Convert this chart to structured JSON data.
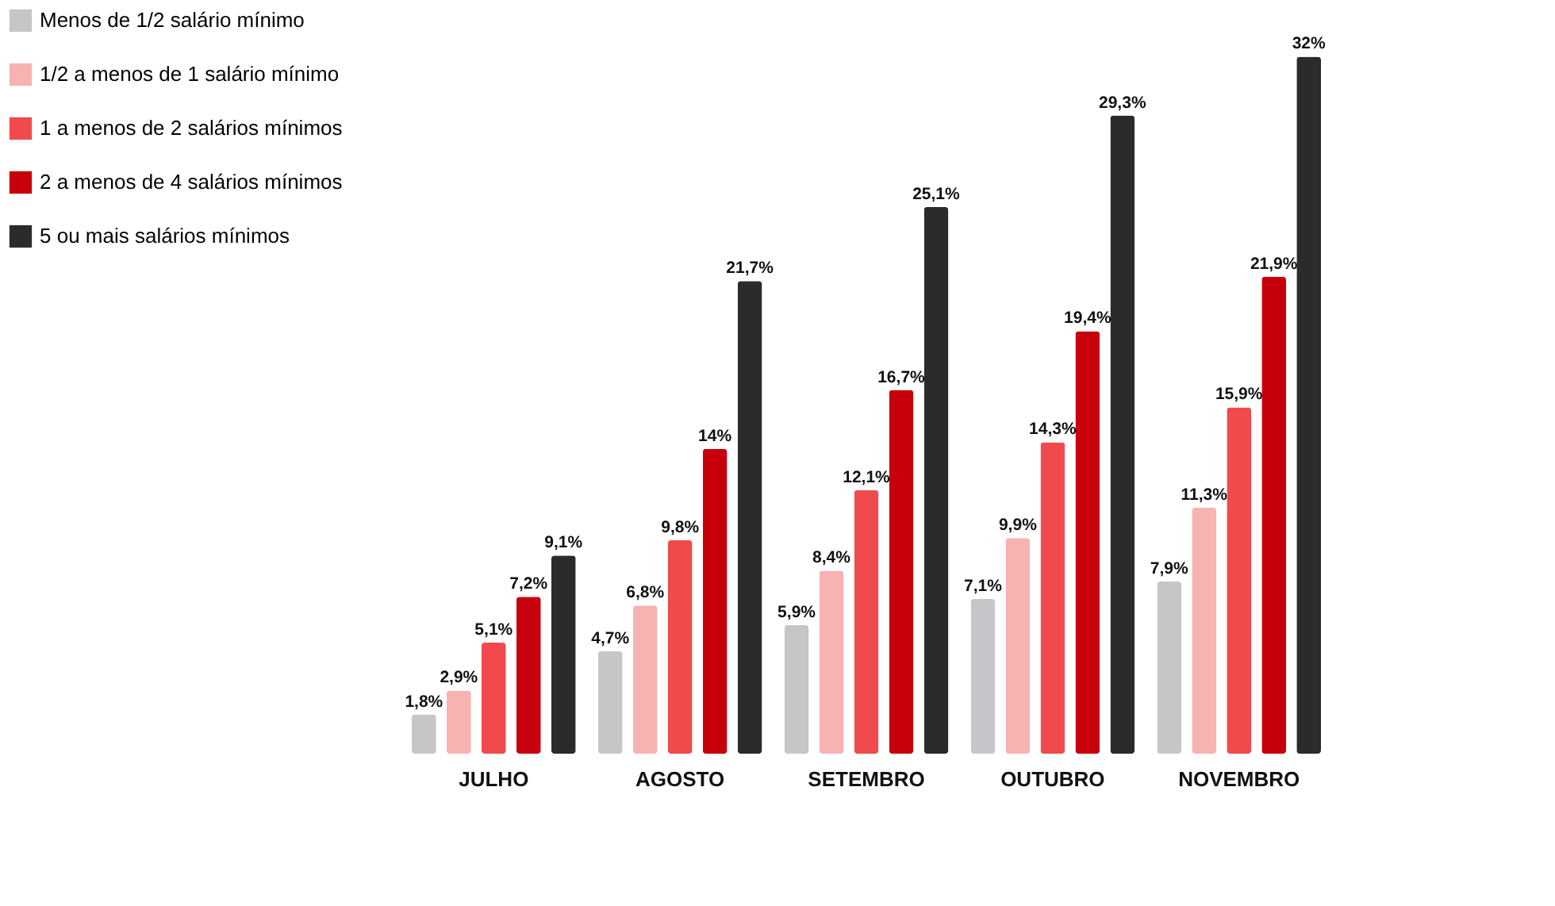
{
  "chart_data": {
    "type": "bar",
    "categories": [
      "JULHO",
      "AGOSTO",
      "SETEMBRO",
      "OUTUBRO",
      "NOVEMBRO"
    ],
    "series": [
      {
        "name": "Menos de 1/2 salário mínimo",
        "color": "#c6c6c8",
        "values": [
          1.8,
          4.7,
          5.9,
          7.1,
          7.9
        ],
        "value_labels": [
          "1,8%",
          "4,7%",
          "5,9%",
          "7,1%",
          "7,9%"
        ]
      },
      {
        "name": "1/2 a menos de 1 salário mínimo",
        "color": "#f7b2b2",
        "values": [
          2.9,
          6.8,
          8.4,
          9.9,
          11.3
        ],
        "value_labels": [
          "2,9%",
          "6,8%",
          "8,4%",
          "9,9%",
          "11,3%"
        ]
      },
      {
        "name": "1 a menos de 2 salários mínimos",
        "color": "#f04a4c",
        "values": [
          5.1,
          9.8,
          12.1,
          14.3,
          15.9
        ],
        "value_labels": [
          "5,1%",
          "9,8%",
          "12,1%",
          "14,3%",
          "15,9%"
        ]
      },
      {
        "name": "2 a menos de 4 salários mínimos",
        "color": "#c8000b",
        "values": [
          7.2,
          14,
          16.7,
          19.4,
          21.9
        ],
        "value_labels": [
          "7,2%",
          "14%",
          "16,7%",
          "19,4%",
          "21,9%"
        ]
      },
      {
        "name": "5 ou mais salários mínimos",
        "color": "#2b2b2b",
        "values": [
          9.1,
          21.7,
          25.1,
          29.3,
          32
        ],
        "value_labels": [
          "9,1%",
          "21,7%",
          "25,1%",
          "29,3%",
          "32%"
        ]
      }
    ],
    "legend": "top left"
  }
}
